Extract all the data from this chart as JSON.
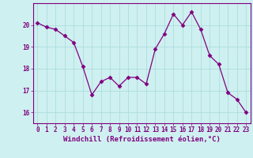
{
  "x": [
    0,
    1,
    2,
    3,
    4,
    5,
    6,
    7,
    8,
    9,
    10,
    11,
    12,
    13,
    14,
    15,
    16,
    17,
    18,
    19,
    20,
    21,
    22,
    23
  ],
  "y": [
    20.1,
    19.9,
    19.8,
    19.5,
    19.2,
    18.1,
    16.8,
    17.4,
    17.6,
    17.2,
    17.6,
    17.6,
    17.3,
    18.9,
    19.6,
    20.5,
    20.0,
    20.6,
    19.8,
    18.6,
    18.2,
    16.9,
    16.6,
    16.0
  ],
  "line_color": "#800080",
  "marker": "D",
  "marker_size": 2.5,
  "bg_color": "#cff0f0",
  "grid_color": "#aadddd",
  "xlabel": "Windchill (Refroidissement éolien,°C)",
  "ylabel": "",
  "ylim": [
    15.5,
    21.0
  ],
  "xlim": [
    -0.5,
    23.5
  ],
  "yticks": [
    16,
    17,
    18,
    19,
    20
  ],
  "xticks": [
    0,
    1,
    2,
    3,
    4,
    5,
    6,
    7,
    8,
    9,
    10,
    11,
    12,
    13,
    14,
    15,
    16,
    17,
    18,
    19,
    20,
    21,
    22,
    23
  ],
  "tick_fontsize": 5.5,
  "label_fontsize": 6.5
}
